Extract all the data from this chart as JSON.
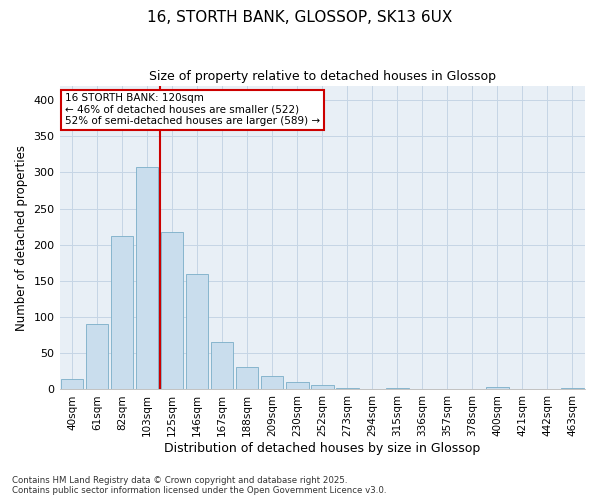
{
  "title_line1": "16, STORTH BANK, GLOSSOP, SK13 6UX",
  "title_line2": "Size of property relative to detached houses in Glossop",
  "xlabel": "Distribution of detached houses by size in Glossop",
  "ylabel": "Number of detached properties",
  "categories": [
    "40sqm",
    "61sqm",
    "82sqm",
    "103sqm",
    "125sqm",
    "146sqm",
    "167sqm",
    "188sqm",
    "209sqm",
    "230sqm",
    "252sqm",
    "273sqm",
    "294sqm",
    "315sqm",
    "336sqm",
    "357sqm",
    "378sqm",
    "400sqm",
    "421sqm",
    "442sqm",
    "463sqm"
  ],
  "values": [
    15,
    90,
    212,
    307,
    218,
    160,
    65,
    31,
    18,
    10,
    6,
    2,
    1,
    2,
    1,
    1,
    0,
    4,
    1,
    0,
    2
  ],
  "bar_color": "#c9dded",
  "bar_edge_color": "#7aaec8",
  "vline_color": "#cc0000",
  "vline_x_index": 3,
  "annotation_text": "16 STORTH BANK: 120sqm\n← 46% of detached houses are smaller (522)\n52% of semi-detached houses are larger (589) →",
  "annotation_box_edge_color": "#cc0000",
  "grid_color": "#c5d5e5",
  "background_color": "#e8eff6",
  "footer_text": "Contains HM Land Registry data © Crown copyright and database right 2025.\nContains public sector information licensed under the Open Government Licence v3.0.",
  "ylim": [
    0,
    420
  ],
  "yticks": [
    0,
    50,
    100,
    150,
    200,
    250,
    300,
    350,
    400
  ]
}
